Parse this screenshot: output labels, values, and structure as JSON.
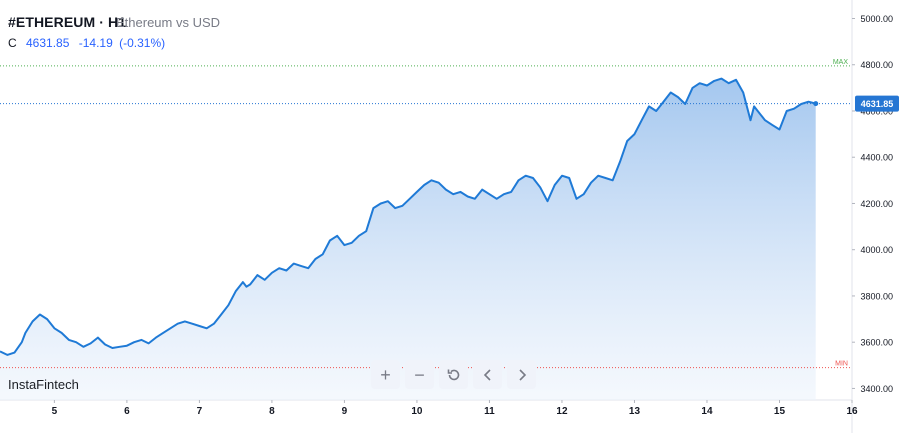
{
  "header": {
    "symbol": "#ETHEREUM · H1",
    "description": "Ethereum vs USD",
    "close_label": "C",
    "close_value": "4631.85",
    "change": "-14.19",
    "change_pct": "(-0.31%)"
  },
  "brand": "InstaFintech",
  "toolbar": {
    "buttons": [
      "zoom-in",
      "zoom-out",
      "reset",
      "scroll-left",
      "scroll-right"
    ],
    "zoom_in_label": "+",
    "zoom_out_label": "−"
  },
  "colors": {
    "line": "#1f7ad6",
    "area_top": "#9fc4ee",
    "area_bottom": "#eef4fc",
    "price_label_bg": "#2576d3",
    "max_line": "#4caf50",
    "min_line": "#ef5350",
    "axis_text": "#131722"
  },
  "chart_data": {
    "type": "area",
    "title": "",
    "xlabel": "",
    "ylabel": "",
    "x_tick_labels": [
      "5",
      "6",
      "7",
      "8",
      "9",
      "10",
      "11",
      "12",
      "13",
      "14",
      "15",
      "16"
    ],
    "x_ticks": [
      5,
      6,
      7,
      8,
      9,
      10,
      11,
      12,
      13,
      14,
      15,
      16
    ],
    "xlim": [
      4.25,
      16.0
    ],
    "y_tick_labels": [
      "3400.00",
      "3600.00",
      "3800.00",
      "4000.00",
      "4200.00",
      "4400.00",
      "4600.00",
      "4800.00",
      "5000.00"
    ],
    "y_ticks": [
      3400,
      3600,
      3800,
      4000,
      4200,
      4400,
      4600,
      4800,
      5000
    ],
    "ylim": [
      3350,
      5080
    ],
    "grid": false,
    "last_price": "4631.85",
    "max_label": "MAX",
    "max_value": 4795,
    "min_label": "MIN",
    "min_value": 3490,
    "series": [
      {
        "x": [
          4.25,
          4.35,
          4.45,
          4.55,
          4.6,
          4.7,
          4.8,
          4.9,
          5.0,
          5.1,
          5.2,
          5.3,
          5.4,
          5.5,
          5.6,
          5.7,
          5.8,
          5.9,
          6.0,
          6.1,
          6.2,
          6.3,
          6.4,
          6.5,
          6.6,
          6.7,
          6.8,
          6.9,
          7.0,
          7.1,
          7.2,
          7.3,
          7.4,
          7.5,
          7.6,
          7.65,
          7.7,
          7.8,
          7.9,
          8.0,
          8.1,
          8.2,
          8.3,
          8.4,
          8.5,
          8.6,
          8.7,
          8.8,
          8.9,
          9.0,
          9.1,
          9.2,
          9.3,
          9.4,
          9.5,
          9.6,
          9.7,
          9.8,
          9.9,
          10.0,
          10.1,
          10.2,
          10.3,
          10.4,
          10.5,
          10.6,
          10.7,
          10.8,
          10.9,
          11.0,
          11.1,
          11.2,
          11.3,
          11.4,
          11.5,
          11.6,
          11.7,
          11.8,
          11.9,
          12.0,
          12.1,
          12.2,
          12.3,
          12.4,
          12.5,
          12.6,
          12.7,
          12.8,
          12.9,
          13.0,
          13.1,
          13.2,
          13.3,
          13.4,
          13.5,
          13.6,
          13.7,
          13.8,
          13.9,
          14.0,
          14.1,
          14.2,
          14.3,
          14.4,
          14.5,
          14.6,
          14.65,
          14.7,
          14.8,
          14.9,
          15.0,
          15.1,
          15.2,
          15.3,
          15.4,
          15.5
        ],
        "y": [
          3560,
          3545,
          3555,
          3600,
          3640,
          3690,
          3720,
          3700,
          3660,
          3640,
          3610,
          3600,
          3580,
          3595,
          3620,
          3590,
          3575,
          3580,
          3585,
          3600,
          3610,
          3595,
          3620,
          3640,
          3660,
          3680,
          3690,
          3680,
          3670,
          3660,
          3680,
          3720,
          3760,
          3820,
          3860,
          3840,
          3850,
          3890,
          3870,
          3900,
          3920,
          3910,
          3940,
          3930,
          3920,
          3960,
          3980,
          4040,
          4060,
          4020,
          4030,
          4060,
          4080,
          4180,
          4200,
          4210,
          4180,
          4190,
          4220,
          4250,
          4280,
          4300,
          4290,
          4260,
          4240,
          4250,
          4230,
          4220,
          4260,
          4240,
          4220,
          4240,
          4250,
          4300,
          4320,
          4310,
          4270,
          4210,
          4280,
          4320,
          4310,
          4220,
          4240,
          4290,
          4320,
          4310,
          4300,
          4380,
          4470,
          4500,
          4560,
          4620,
          4600,
          4640,
          4680,
          4660,
          4630,
          4700,
          4720,
          4710,
          4730,
          4740,
          4720,
          4735,
          4680,
          4560,
          4620,
          4600,
          4560,
          4540,
          4520,
          4600,
          4610,
          4630,
          4640,
          4632
        ]
      }
    ]
  }
}
